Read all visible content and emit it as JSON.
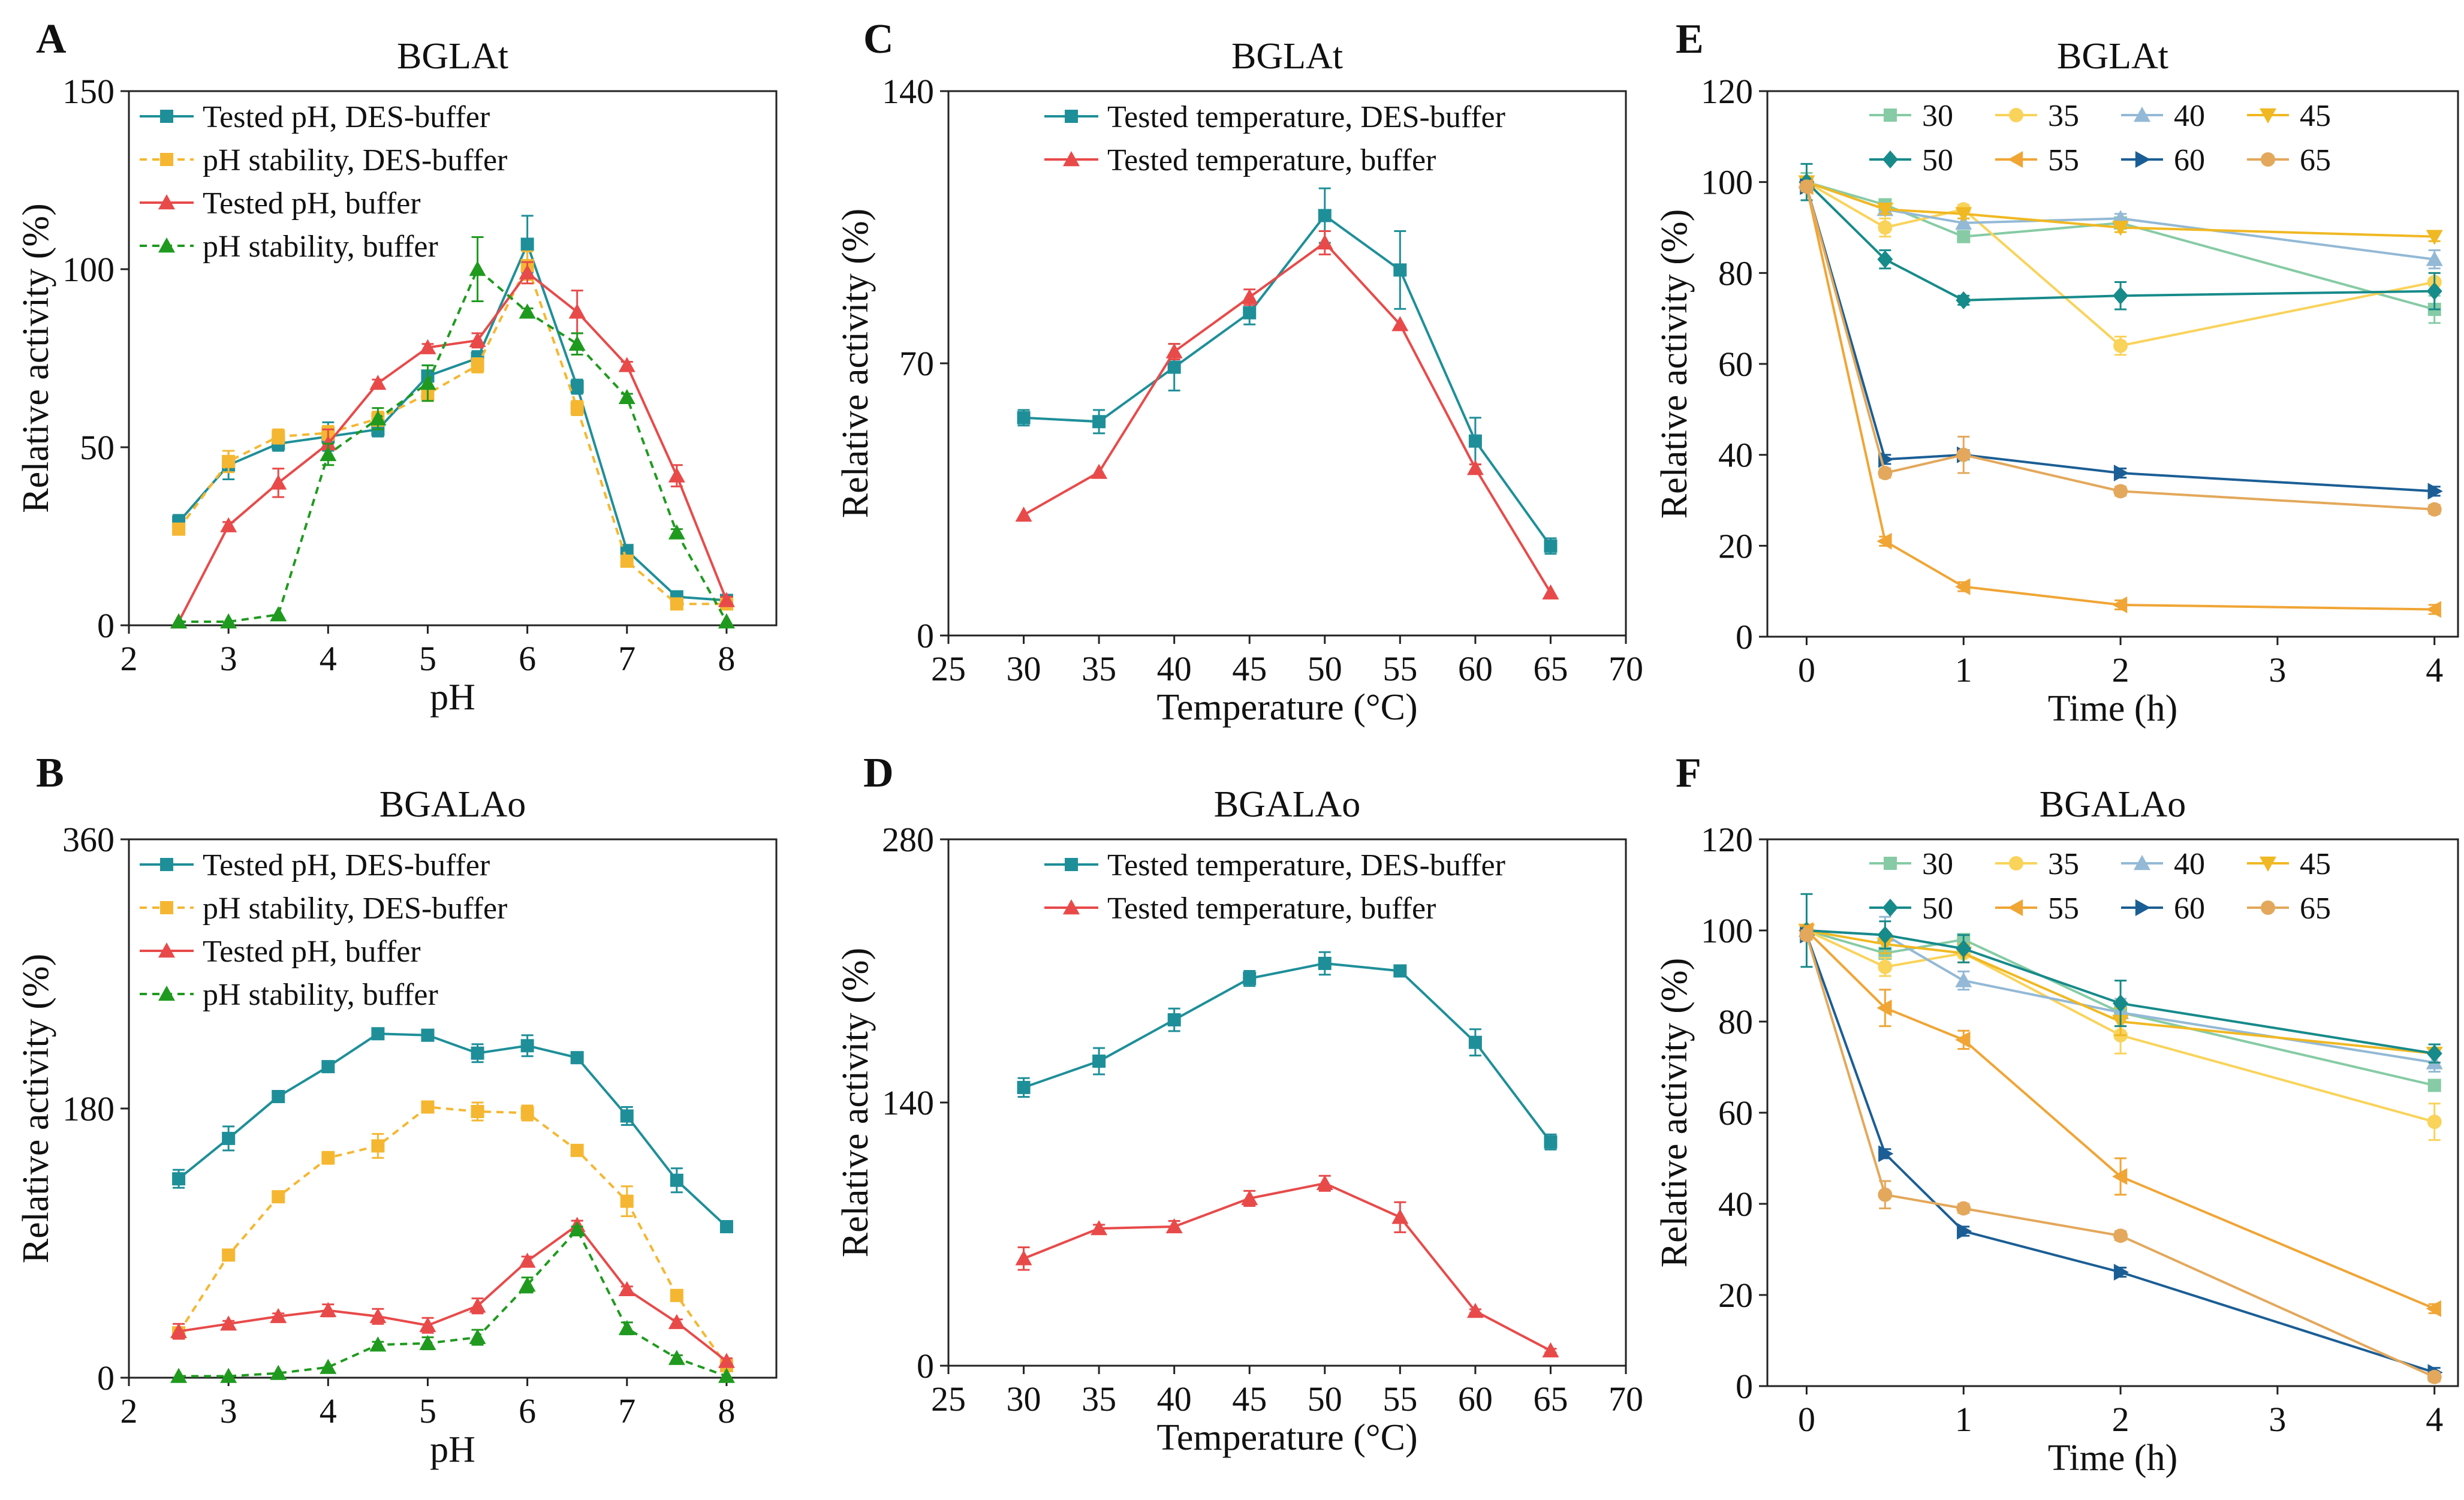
{
  "figure": {
    "panels": [
      "A",
      "B",
      "C",
      "D",
      "E",
      "F"
    ]
  },
  "colors": {
    "teal": "#1e8f99",
    "yellow": "#f5b731",
    "red": "#e84a4a",
    "green": "#1f9a1f",
    "t30": "#86cba5",
    "t35": "#f9d35a",
    "t40": "#93b9d6",
    "t45": "#f0b822",
    "t50": "#178a8a",
    "t55": "#f0a535",
    "t60": "#1b5e95",
    "t65": "#e3a85b"
  },
  "chart_data": [
    {
      "id": "A",
      "type": "line",
      "title": "BGLAt",
      "xlabel": "pH",
      "ylabel": "Relative activity (%)",
      "xlim": [
        2,
        8.5
      ],
      "ylim": [
        0,
        150
      ],
      "xticks": [
        "2",
        "3",
        "4",
        "5",
        "6",
        "7",
        "8"
      ],
      "yticks": [
        "0",
        "50",
        "100",
        "150"
      ],
      "legend": "top-left",
      "series": [
        {
          "name": "Tested pH, DES-buffer",
          "color": "teal",
          "marker": "square",
          "dash": false,
          "x": [
            2.5,
            3,
            3.5,
            4,
            4.5,
            5,
            5.5,
            6,
            6.5,
            7,
            7.5,
            8
          ],
          "y": [
            29,
            45,
            51,
            53,
            55,
            70,
            75,
            107,
            67,
            21,
            8,
            7
          ],
          "err": [
            2,
            4,
            2,
            4,
            2,
            3,
            2,
            8,
            2,
            1,
            1,
            1
          ]
        },
        {
          "name": "pH stability, DES-buffer",
          "color": "yellow",
          "marker": "square",
          "dash": true,
          "x": [
            2.5,
            3,
            3.5,
            4,
            4.5,
            5,
            5.5,
            6,
            6.5,
            7,
            7.5,
            8
          ],
          "y": [
            27,
            46,
            53,
            54,
            58,
            65,
            73,
            101,
            61,
            18,
            6,
            6
          ],
          "err": [
            1,
            3,
            2,
            2,
            2,
            2,
            2,
            4,
            2,
            1,
            1,
            1
          ]
        },
        {
          "name": "Tested pH, buffer",
          "color": "red",
          "marker": "triangle",
          "dash": false,
          "x": [
            2.5,
            3,
            3.5,
            4,
            4.5,
            5,
            5.5,
            6,
            6.5,
            7,
            7.5,
            8
          ],
          "y": [
            1,
            28,
            40,
            51,
            68,
            78,
            80,
            99,
            88,
            73,
            42,
            7
          ],
          "err": [
            0,
            1,
            4,
            4,
            1,
            1,
            2,
            3,
            6,
            1,
            3,
            1
          ]
        },
        {
          "name": "pH stability, buffer",
          "color": "green",
          "marker": "triangle",
          "dash": true,
          "x": [
            2.5,
            3,
            3.5,
            4,
            4.5,
            5,
            5.5,
            6,
            6.5,
            7,
            7.5,
            8
          ],
          "y": [
            1,
            1,
            3,
            48,
            58,
            68,
            100,
            88,
            79,
            64,
            26,
            1
          ],
          "err": [
            0,
            0,
            0,
            3,
            3,
            5,
            9,
            1,
            3,
            1,
            1,
            0
          ]
        }
      ]
    },
    {
      "id": "B",
      "type": "line",
      "title": "BGALAo",
      "xlabel": "pH",
      "ylabel": "Relative activity (%)",
      "xlim": [
        2,
        8.5
      ],
      "ylim": [
        0,
        360
      ],
      "xticks": [
        "2",
        "3",
        "4",
        "5",
        "6",
        "7",
        "8"
      ],
      "yticks": [
        "0",
        "180",
        "360"
      ],
      "legend": "top-left",
      "series": [
        {
          "name": "Tested pH, DES-buffer",
          "color": "teal",
          "marker": "square",
          "dash": false,
          "x": [
            2.5,
            3,
            3.5,
            4,
            4.5,
            5,
            5.5,
            6,
            6.5,
            7,
            7.5,
            8
          ],
          "y": [
            133,
            160,
            188,
            208,
            230,
            229,
            217,
            222,
            214,
            175,
            132,
            101
          ],
          "err": [
            6,
            8,
            3,
            3,
            2,
            2,
            6,
            7,
            3,
            6,
            8,
            2
          ]
        },
        {
          "name": "pH stability, DES-buffer",
          "color": "yellow",
          "marker": "square",
          "dash": true,
          "x": [
            2.5,
            3,
            3.5,
            4,
            4.5,
            5,
            5.5,
            6,
            6.5,
            7,
            7.5,
            8
          ],
          "y": [
            30,
            82,
            121,
            147,
            155,
            181,
            178,
            177,
            152,
            118,
            55,
            8
          ],
          "err": [
            2,
            2,
            2,
            4,
            8,
            2,
            6,
            5,
            3,
            10,
            3,
            1
          ]
        },
        {
          "name": "Tested pH, buffer",
          "color": "red",
          "marker": "triangle",
          "dash": false,
          "x": [
            2.5,
            3,
            3.5,
            4,
            4.5,
            5,
            5.5,
            6,
            6.5,
            7,
            7.5,
            8
          ],
          "y": [
            31,
            36,
            41,
            45,
            41,
            35,
            48,
            78,
            102,
            59,
            37,
            11
          ],
          "err": [
            5,
            2,
            2,
            4,
            5,
            5,
            5,
            3,
            3,
            2,
            2,
            2
          ]
        },
        {
          "name": "pH stability, buffer",
          "color": "green",
          "marker": "triangle",
          "dash": true,
          "x": [
            2.5,
            3,
            3.5,
            4,
            4.5,
            5,
            5.5,
            6,
            6.5,
            7,
            7.5,
            8
          ],
          "y": [
            1,
            1,
            3,
            7,
            22,
            23,
            27,
            62,
            99,
            33,
            13,
            1
          ],
          "err": [
            0,
            0,
            0,
            0,
            2,
            4,
            5,
            5,
            2,
            4,
            2,
            0
          ]
        }
      ]
    },
    {
      "id": "C",
      "type": "line",
      "title": "BGLAt",
      "xlabel": "Temperature (°C)",
      "ylabel": "Relative activity (%)",
      "xlim": [
        25,
        70
      ],
      "ylim": [
        0,
        140
      ],
      "xticks": [
        "25",
        "30",
        "35",
        "40",
        "45",
        "50",
        "55",
        "60",
        "65",
        "70"
      ],
      "yticks": [
        "0",
        "70",
        "140"
      ],
      "legend": "top-center",
      "series": [
        {
          "name": "Tested temperature, DES-buffer",
          "color": "teal",
          "marker": "square",
          "dash": false,
          "x": [
            30,
            35,
            40,
            45,
            50,
            55,
            60,
            65
          ],
          "y": [
            56,
            55,
            69,
            83,
            108,
            94,
            50,
            23
          ],
          "err": [
            2,
            3,
            6,
            3,
            7,
            10,
            6,
            2
          ]
        },
        {
          "name": "Tested temperature, buffer",
          "color": "red",
          "marker": "triangle",
          "dash": false,
          "x": [
            30,
            35,
            40,
            45,
            50,
            55,
            60,
            65
          ],
          "y": [
            31,
            42,
            73,
            87,
            101,
            80,
            43,
            11
          ],
          "err": [
            0,
            0,
            2,
            2,
            3,
            0,
            1,
            0
          ]
        }
      ]
    },
    {
      "id": "D",
      "type": "line",
      "title": "BGALAo",
      "xlabel": "Temperature (°C)",
      "ylabel": "Relative activity (%)",
      "xlim": [
        25,
        70
      ],
      "ylim": [
        0,
        280
      ],
      "xticks": [
        "25",
        "30",
        "35",
        "40",
        "45",
        "50",
        "55",
        "60",
        "65",
        "70"
      ],
      "yticks": [
        "0",
        "140",
        "280"
      ],
      "legend": "top-center",
      "series": [
        {
          "name": "Tested temperature, DES-buffer",
          "color": "teal",
          "marker": "square",
          "dash": false,
          "x": [
            30,
            35,
            40,
            45,
            50,
            55,
            60,
            65
          ],
          "y": [
            148,
            162,
            184,
            206,
            214,
            210,
            172,
            119
          ],
          "err": [
            5,
            7,
            6,
            4,
            6,
            2,
            7,
            4
          ]
        },
        {
          "name": "Tested temperature, buffer",
          "color": "red",
          "marker": "triangle",
          "dash": false,
          "x": [
            30,
            35,
            40,
            45,
            50,
            55,
            60,
            65
          ],
          "y": [
            57,
            73,
            74,
            89,
            97,
            79,
            29,
            8
          ],
          "err": [
            6,
            2,
            3,
            4,
            4,
            8,
            1,
            1
          ]
        }
      ]
    },
    {
      "id": "E",
      "type": "line",
      "title": "BGLAt",
      "xlabel": "Time (h)",
      "ylabel": "Relative activity (%)",
      "xlim": [
        -0.25,
        4.15
      ],
      "ylim": [
        0,
        120
      ],
      "xticks": [
        "0",
        "1",
        "2",
        "3",
        "4"
      ],
      "yticks": [
        "0",
        "20",
        "40",
        "60",
        "80",
        "100",
        "120"
      ],
      "legend": "top-right",
      "series": [
        {
          "name": "30",
          "color": "t30",
          "marker": "square",
          "x": [
            0,
            0.5,
            1,
            2,
            4
          ],
          "y": [
            100,
            95,
            88,
            91,
            72
          ],
          "err": [
            2,
            1,
            1,
            1,
            3
          ]
        },
        {
          "name": "35",
          "color": "t35",
          "marker": "circle",
          "x": [
            0,
            0.5,
            1,
            2,
            4
          ],
          "y": [
            100,
            90,
            94,
            64,
            78
          ],
          "err": [
            1,
            2,
            1,
            2,
            2
          ]
        },
        {
          "name": "40",
          "color": "t40",
          "marker": "triangle",
          "x": [
            0,
            0.5,
            1,
            2,
            4
          ],
          "y": [
            100,
            94,
            91,
            92,
            83
          ],
          "err": [
            1,
            1,
            1,
            1,
            2
          ]
        },
        {
          "name": "45",
          "color": "t45",
          "marker": "triangle-down",
          "x": [
            0,
            0.5,
            1,
            2,
            4
          ],
          "y": [
            100,
            94,
            93,
            90,
            88
          ],
          "err": [
            1,
            1,
            1,
            1,
            1
          ]
        },
        {
          "name": "50",
          "color": "t50",
          "marker": "diamond",
          "x": [
            0,
            0.5,
            1,
            2,
            4
          ],
          "y": [
            100,
            83,
            74,
            75,
            76
          ],
          "err": [
            4,
            2,
            1,
            3,
            4
          ]
        },
        {
          "name": "55",
          "color": "t55",
          "marker": "triangle-left",
          "x": [
            0,
            0.5,
            1,
            2,
            4
          ],
          "y": [
            99,
            21,
            11,
            7,
            6
          ],
          "err": [
            1,
            1,
            1,
            1,
            1
          ]
        },
        {
          "name": "60",
          "color": "t60",
          "marker": "triangle-right",
          "x": [
            0,
            0.5,
            1,
            2,
            4
          ],
          "y": [
            99,
            39,
            40,
            36,
            32
          ],
          "err": [
            1,
            1,
            1,
            1,
            1
          ]
        },
        {
          "name": "65",
          "color": "t65",
          "marker": "circle",
          "x": [
            0,
            0.5,
            1,
            2,
            4
          ],
          "y": [
            99,
            36,
            40,
            32,
            28
          ],
          "err": [
            1,
            1,
            4,
            1,
            1
          ]
        }
      ]
    },
    {
      "id": "F",
      "type": "line",
      "title": "BGALAo",
      "xlabel": "Time (h)",
      "ylabel": "Relative activity (%)",
      "xlim": [
        -0.25,
        4.15
      ],
      "ylim": [
        0,
        120
      ],
      "xticks": [
        "0",
        "1",
        "2",
        "3",
        "4"
      ],
      "yticks": [
        "0",
        "20",
        "40",
        "60",
        "80",
        "100",
        "120"
      ],
      "legend": "top-right",
      "series": [
        {
          "name": "30",
          "color": "t30",
          "marker": "square",
          "x": [
            0,
            0.5,
            1,
            2,
            4
          ],
          "y": [
            100,
            95,
            98,
            82,
            66
          ],
          "err": [
            1,
            3,
            1,
            3,
            1
          ]
        },
        {
          "name": "35",
          "color": "t35",
          "marker": "circle",
          "x": [
            0,
            0.5,
            1,
            2,
            4
          ],
          "y": [
            100,
            92,
            95,
            77,
            58
          ],
          "err": [
            1,
            2,
            2,
            4,
            4
          ]
        },
        {
          "name": "40",
          "color": "t40",
          "marker": "triangle",
          "x": [
            0,
            0.5,
            1,
            2,
            4
          ],
          "y": [
            100,
            99,
            89,
            82,
            71
          ],
          "err": [
            1,
            4,
            2,
            3,
            2
          ]
        },
        {
          "name": "45",
          "color": "t45",
          "marker": "triangle-down",
          "x": [
            0,
            0.5,
            1,
            2,
            4
          ],
          "y": [
            100,
            97,
            95,
            80,
            73
          ],
          "err": [
            1,
            2,
            2,
            3,
            2
          ]
        },
        {
          "name": "50",
          "color": "t50",
          "marker": "diamond",
          "x": [
            0,
            0.5,
            1,
            2,
            4
          ],
          "y": [
            100,
            99,
            96,
            84,
            73
          ],
          "err": [
            8,
            3,
            3,
            5,
            2
          ]
        },
        {
          "name": "55",
          "color": "t55",
          "marker": "triangle-left",
          "x": [
            0,
            0.5,
            1,
            2,
            4
          ],
          "y": [
            100,
            83,
            76,
            46,
            17
          ],
          "err": [
            1,
            4,
            2,
            4,
            1
          ]
        },
        {
          "name": "60",
          "color": "t60",
          "marker": "triangle-right",
          "x": [
            0,
            0.5,
            1,
            2,
            4
          ],
          "y": [
            99,
            51,
            34,
            25,
            3
          ],
          "err": [
            1,
            1,
            1,
            1,
            1
          ]
        },
        {
          "name": "65",
          "color": "t65",
          "marker": "circle",
          "x": [
            0,
            0.5,
            1,
            2,
            4
          ],
          "y": [
            99,
            42,
            39,
            33,
            2
          ],
          "err": [
            1,
            3,
            1,
            1,
            1
          ]
        }
      ]
    }
  ]
}
